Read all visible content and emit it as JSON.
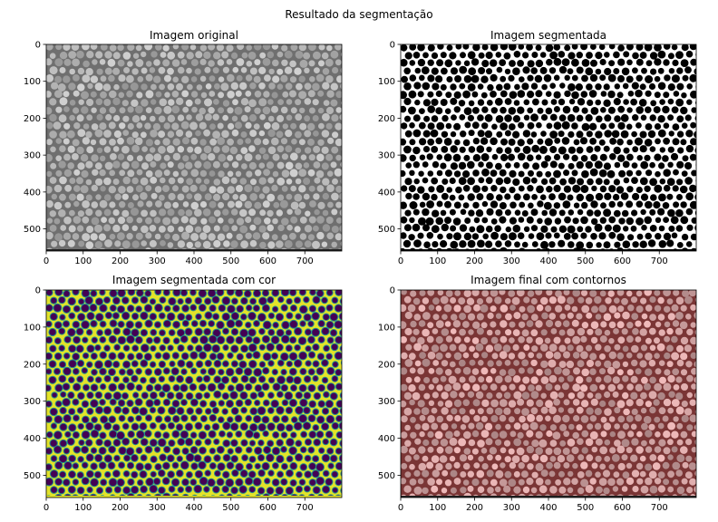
{
  "figure": {
    "suptitle": "Resultado da segmentação"
  },
  "colors": {
    "grayscale_base": "#6f6f6f",
    "grayscale_blob": "#b9b9b9",
    "binary_background": "#ffffff",
    "binary_blob": "#000000",
    "viridis_yellow": "#e3e32a",
    "viridis_green": "#6ccd5a",
    "viridis_teal": "#218f8d",
    "viridis_purple": "#440154",
    "contour_base": "#7a3535",
    "contour_blob": "#d6b8b8"
  },
  "chart_data": [
    {
      "type": "image",
      "id": "original",
      "title": "Imagem original",
      "colormap": "gray",
      "xlim": [
        0,
        800
      ],
      "ylim": [
        560,
        0
      ],
      "xticks": [
        0,
        100,
        200,
        300,
        400,
        500,
        600,
        700
      ],
      "xtick_labels": [
        "0",
        "100",
        "200",
        "300",
        "400",
        "500",
        "600",
        "700"
      ],
      "yticks": [
        0,
        100,
        200,
        300,
        400,
        500
      ],
      "ytick_labels": [
        "0",
        "100",
        "200",
        "300",
        "400",
        "500"
      ],
      "xlabel": "",
      "ylabel": ""
    },
    {
      "type": "image",
      "id": "segmented",
      "title": "Imagem segmentada",
      "colormap": "binary",
      "xlim": [
        0,
        800
      ],
      "ylim": [
        560,
        0
      ],
      "xticks": [
        0,
        100,
        200,
        300,
        400,
        500,
        600,
        700
      ],
      "xtick_labels": [
        "0",
        "100",
        "200",
        "300",
        "400",
        "500",
        "600",
        "700"
      ],
      "yticks": [
        0,
        100,
        200,
        300,
        400,
        500
      ],
      "ytick_labels": [
        "0",
        "100",
        "200",
        "300",
        "400",
        "500"
      ],
      "xlabel": "",
      "ylabel": ""
    },
    {
      "type": "image",
      "id": "segmented-color",
      "title": "Imagem segmentada com cor",
      "colormap": "viridis",
      "xlim": [
        0,
        800
      ],
      "ylim": [
        560,
        0
      ],
      "xticks": [
        0,
        100,
        200,
        300,
        400,
        500,
        600,
        700
      ],
      "xtick_labels": [
        "0",
        "100",
        "200",
        "300",
        "400",
        "500",
        "600",
        "700"
      ],
      "yticks": [
        0,
        100,
        200,
        300,
        400,
        500
      ],
      "ytick_labels": [
        "0",
        "100",
        "200",
        "300",
        "400",
        "500"
      ],
      "xlabel": "",
      "ylabel": ""
    },
    {
      "type": "image",
      "id": "final-contours",
      "title": "Imagem final com contornos",
      "colormap": "red-tint",
      "xlim": [
        0,
        800
      ],
      "ylim": [
        560,
        0
      ],
      "xticks": [
        0,
        100,
        200,
        300,
        400,
        500,
        600,
        700
      ],
      "xtick_labels": [
        "0",
        "100",
        "200",
        "300",
        "400",
        "500",
        "600",
        "700"
      ],
      "yticks": [
        0,
        100,
        200,
        300,
        400,
        500
      ],
      "ytick_labels": [
        "0",
        "100",
        "200",
        "300",
        "400",
        "500"
      ],
      "xlabel": "",
      "ylabel": ""
    }
  ]
}
